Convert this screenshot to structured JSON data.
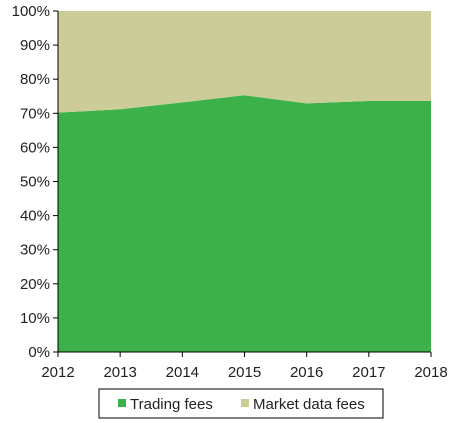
{
  "chart_data": {
    "type": "area",
    "stacked": true,
    "percent": true,
    "x": [
      "2012",
      "2013",
      "2014",
      "2015",
      "2016",
      "2017",
      "2018"
    ],
    "series": [
      {
        "name": "Trading fees",
        "values": [
          70.2,
          71.2,
          73.2,
          75.3,
          72.9,
          73.6,
          73.6
        ],
        "color": "#3cb14a"
      },
      {
        "name": "Market data fees",
        "values": [
          29.8,
          28.8,
          26.8,
          24.7,
          27.1,
          26.4,
          26.4
        ],
        "color": "#cccc99"
      }
    ],
    "y_ticks": [
      "0%",
      "10%",
      "20%",
      "30%",
      "40%",
      "50%",
      "60%",
      "70%",
      "80%",
      "90%",
      "100%"
    ],
    "ylim": [
      0,
      100
    ],
    "grid": false,
    "legend_position": "bottom"
  }
}
